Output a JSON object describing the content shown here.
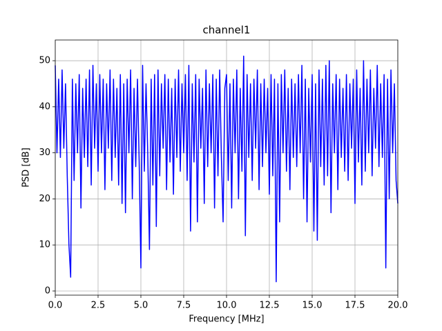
{
  "chart_data": {
    "type": "line",
    "title": "channel1",
    "xlabel": "Frequency [MHz]",
    "ylabel": "PSD [dB]",
    "color": "#0000ff",
    "grid": true,
    "x": [
      0,
      0.1,
      0.2,
      0.3,
      0.4,
      0.5,
      0.6,
      0.7,
      0.8,
      0.9,
      1,
      1.1,
      1.2,
      1.3,
      1.4,
      1.5,
      1.6,
      1.7,
      1.8,
      1.9,
      2,
      2.1,
      2.2,
      2.3,
      2.4,
      2.5,
      2.6,
      2.7,
      2.8,
      2.9,
      3,
      3.1,
      3.2,
      3.3,
      3.4,
      3.5,
      3.6,
      3.7,
      3.8,
      3.9,
      4,
      4.1,
      4.2,
      4.3,
      4.4,
      4.5,
      4.6,
      4.7,
      4.8,
      4.9,
      5,
      5.1,
      5.2,
      5.3,
      5.4,
      5.5,
      5.6,
      5.7,
      5.8,
      5.9,
      6,
      6.1,
      6.2,
      6.3,
      6.4,
      6.5,
      6.6,
      6.7,
      6.8,
      6.9,
      7,
      7.1,
      7.2,
      7.3,
      7.4,
      7.5,
      7.6,
      7.7,
      7.8,
      7.9,
      8,
      8.1,
      8.2,
      8.3,
      8.4,
      8.5,
      8.6,
      8.7,
      8.8,
      8.9,
      9,
      9.1,
      9.2,
      9.3,
      9.4,
      9.5,
      9.6,
      9.7,
      9.8,
      9.9,
      10,
      10.1,
      10.2,
      10.3,
      10.4,
      10.5,
      10.6,
      10.7,
      10.8,
      10.9,
      11,
      11.1,
      11.2,
      11.3,
      11.4,
      11.5,
      11.6,
      11.7,
      11.8,
      11.9,
      12,
      12.1,
      12.2,
      12.3,
      12.4,
      12.5,
      12.6,
      12.7,
      12.8,
      12.9,
      13,
      13.1,
      13.2,
      13.3,
      13.4,
      13.5,
      13.6,
      13.7,
      13.8,
      13.9,
      14,
      14.1,
      14.2,
      14.3,
      14.4,
      14.5,
      14.6,
      14.7,
      14.8,
      14.9,
      15,
      15.1,
      15.2,
      15.3,
      15.4,
      15.5,
      15.6,
      15.7,
      15.8,
      15.9,
      16,
      16.1,
      16.2,
      16.3,
      16.4,
      16.5,
      16.6,
      16.7,
      16.8,
      16.9,
      17,
      17.1,
      17.2,
      17.3,
      17.4,
      17.5,
      17.6,
      17.7,
      17.8,
      17.9,
      18,
      18.1,
      18.2,
      18.3,
      18.4,
      18.5,
      18.6,
      18.7,
      18.8,
      18.9,
      19,
      19.1,
      19.2,
      19.3,
      19.4,
      19.5,
      19.6,
      19.7,
      19.8,
      19.9,
      20
    ],
    "values": [
      49,
      30,
      46,
      29,
      48,
      31,
      45,
      25,
      10,
      3,
      46,
      24,
      45,
      30,
      47,
      18,
      44,
      29,
      46,
      27,
      48,
      23,
      49,
      31,
      45,
      26,
      47,
      30,
      46,
      22,
      45,
      31,
      48,
      24,
      46,
      29,
      44,
      23,
      47,
      19,
      45,
      17,
      46,
      30,
      48,
      20,
      44,
      27,
      46,
      28,
      5,
      49,
      26,
      45,
      30,
      9,
      46,
      23,
      47,
      14,
      48,
      25,
      45,
      31,
      47,
      22,
      46,
      28,
      44,
      21,
      46,
      29,
      48,
      26,
      45,
      30,
      47,
      24,
      49,
      13,
      45,
      28,
      47,
      15,
      46,
      31,
      44,
      19,
      48,
      27,
      45,
      30,
      47,
      18,
      46,
      25,
      48,
      29,
      15,
      44,
      47,
      24,
      45,
      18,
      46,
      30,
      48,
      20,
      44,
      26,
      51,
      12,
      47,
      29,
      45,
      24,
      46,
      31,
      48,
      22,
      45,
      27,
      46,
      30,
      44,
      21,
      47,
      25,
      46,
      2,
      45,
      15,
      47,
      30,
      48,
      26,
      44,
      22,
      46,
      29,
      45,
      27,
      47,
      30,
      49,
      20,
      46,
      15,
      44,
      28,
      47,
      13,
      45,
      11,
      48,
      27,
      46,
      23,
      49,
      25,
      50,
      17,
      45,
      30,
      47,
      22,
      46,
      29,
      44,
      26,
      47,
      24,
      45,
      31,
      46,
      19,
      48,
      28,
      44,
      23,
      50,
      26,
      46,
      30,
      48,
      25,
      44,
      31,
      49,
      27,
      45,
      29,
      47,
      5,
      46,
      20,
      48,
      30,
      45,
      24,
      19
    ],
    "xlim": [
      0,
      20
    ],
    "xticks": [
      {
        "value": 0,
        "label": "0.0"
      },
      2.5,
      {
        "value": 5,
        "label": "5.0"
      },
      7.5,
      {
        "value": 10,
        "label": "10.0"
      },
      12.5,
      {
        "value": 15,
        "label": "15.0"
      },
      17.5,
      {
        "value": 20,
        "label": "20.0"
      }
    ],
    "ylim": [
      -0.9,
      54.5
    ],
    "yticks": [
      0,
      10,
      20,
      30,
      40,
      50
    ]
  }
}
